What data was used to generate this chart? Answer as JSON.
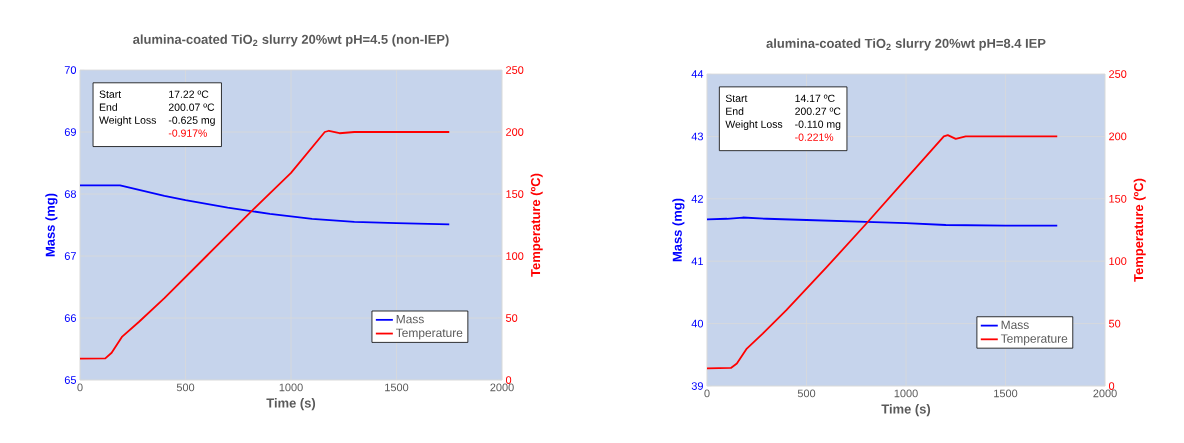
{
  "chart_data": [
    {
      "type": "line",
      "title": "alumina-coated TiO$_{2}$ slurry 20%wt pH=4.5 (non-IEP)",
      "xlabel": "Time (s)",
      "ylabel": "Mass (mg)",
      "y2label": "Temperature (ºC)",
      "xlim": [
        0,
        2000
      ],
      "xticks": [
        0,
        500,
        1000,
        1500,
        2000
      ],
      "ylim": [
        65,
        70
      ],
      "yticks": [
        65,
        66,
        67,
        68,
        69,
        70
      ],
      "y2lim": [
        0,
        250
      ],
      "y2ticks": [
        0,
        50,
        100,
        150,
        200,
        250
      ],
      "grid": true,
      "legend": "bottom right",
      "annotations": [
        "Start",
        "17.22 ºC",
        "End",
        "200.07 ºC",
        "Weight Loss",
        "-0.625 mg",
        "-0.917%"
      ],
      "series": [
        {
          "name": "Mass",
          "color": "#0000ff",
          "x": [
            0,
            190,
            300,
            400,
            500,
            700,
            900,
            1100,
            1300,
            1500,
            1750
          ],
          "values": [
            68.14,
            68.14,
            68.05,
            67.97,
            67.9,
            67.78,
            67.68,
            67.6,
            67.55,
            67.53,
            67.51
          ]
        },
        {
          "name": "Temperature",
          "color": "#ff0000",
          "axis": "y2",
          "x": [
            0,
            120,
            150,
            200,
            280,
            400,
            600,
            800,
            1000,
            1160,
            1180,
            1230,
            1300,
            1750
          ],
          "values": [
            17.2,
            17.5,
            22,
            35,
            47,
            66,
            100,
            134,
            167,
            200,
            201,
            199,
            200,
            200
          ]
        }
      ]
    },
    {
      "type": "line",
      "title": "alumina-coated TiO$_{2}$ slurry 20%wt pH=8.4 IEP",
      "xlabel": "Time (s)",
      "ylabel": "Mass (mg)",
      "y2label": "Temperature (ºC)",
      "xlim": [
        0,
        2000
      ],
      "xticks": [
        0,
        500,
        1000,
        1500,
        2000
      ],
      "ylim": [
        39,
        44
      ],
      "yticks": [
        39,
        40,
        41,
        42,
        43,
        44
      ],
      "y2lim": [
        0,
        250
      ],
      "y2ticks": [
        0,
        50,
        100,
        150,
        200,
        250
      ],
      "grid": true,
      "legend": "bottom right",
      "annotations": [
        "Start",
        "14.17 ºC",
        "End",
        "200.27 ºC",
        "Weight Loss",
        "-0.110 mg",
        "-0.221%"
      ],
      "series": [
        {
          "name": "Mass",
          "color": "#0000ff",
          "x": [
            0,
            100,
            180,
            300,
            500,
            800,
            1000,
            1200,
            1500,
            1760
          ],
          "values": [
            41.67,
            41.68,
            41.7,
            41.68,
            41.66,
            41.63,
            41.61,
            41.58,
            41.57,
            41.57
          ]
        },
        {
          "name": "Temperature",
          "color": "#ff0000",
          "axis": "y2",
          "x": [
            0,
            120,
            150,
            200,
            280,
            400,
            600,
            800,
            1000,
            1190,
            1210,
            1250,
            1300,
            1760
          ],
          "values": [
            14.2,
            14.5,
            18,
            30,
            42,
            61,
            95,
            130,
            166,
            200,
            201,
            198,
            200,
            200
          ]
        }
      ]
    }
  ]
}
